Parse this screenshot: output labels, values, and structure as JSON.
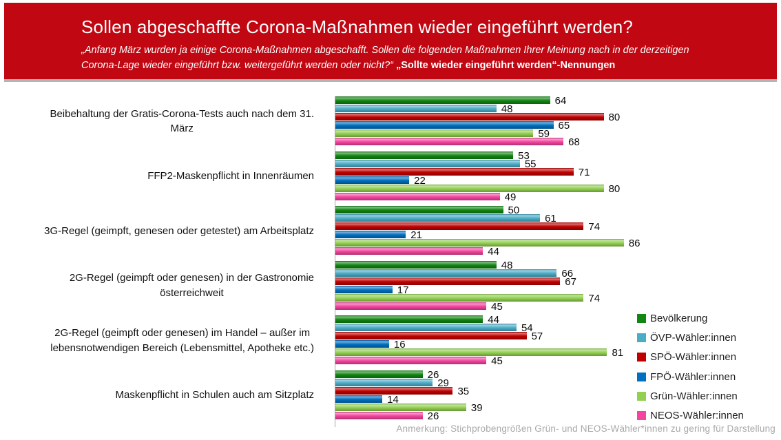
{
  "header": {
    "title": "Sollen abgeschaffte Corona-Maßnahmen wieder eingeführt werden?",
    "subtitle_line1": "„Anfang März wurden ja einige Corona-Maßnahmen abgeschafft. Sollen die folgenden Maßnahmen Ihrer Meinung nach in der derzeitigen",
    "subtitle_line2": "Corona-Lage wieder eingeführt bzw. weitergeführt werden oder nicht?“ ",
    "subtitle_emphasis": "„Sollte wieder eingeführt werden“-Nennungen"
  },
  "chart_data": {
    "type": "bar",
    "orientation": "horizontal",
    "xlim": [
      0,
      100
    ],
    "grid": false,
    "value_labels": true,
    "legend_position": "right-bottom",
    "categories": [
      "Beibehaltung der Gratis-Corona-Tests auch nach dem 31.\nMärz",
      "FFP2-Maskenpflicht in Innenräumen",
      "3G-Regel (geimpft, genesen oder getestet) am Arbeitsplatz",
      "2G-Regel (geimpft oder genesen) in der Gastronomie\nösterreichweit",
      "2G-Regel (geimpft oder genesen) im Handel – außer im\nlebensnotwendigen Bereich (Lebensmittel, Apotheke etc.)",
      "Maskenpflicht in Schulen auch am Sitzplatz"
    ],
    "series": [
      {
        "name": "Bevölkerung",
        "color": "#128612",
        "values": [
          64,
          53,
          50,
          48,
          44,
          26
        ]
      },
      {
        "name": "ÖVP-Wähler:innen",
        "color": "#4BACC6",
        "values": [
          48,
          55,
          61,
          66,
          54,
          29
        ]
      },
      {
        "name": "SPÖ-Wähler:innen",
        "color": "#C00000",
        "values": [
          80,
          71,
          74,
          67,
          57,
          35
        ]
      },
      {
        "name": "FPÖ-Wähler:innen",
        "color": "#0070C0",
        "values": [
          65,
          22,
          21,
          17,
          16,
          14
        ]
      },
      {
        "name": "Grün-Wähler:innen",
        "color": "#92D050",
        "values": [
          59,
          80,
          86,
          74,
          81,
          39
        ]
      },
      {
        "name": "NEOS-Wähler:innen",
        "color": "#F4449F",
        "values": [
          68,
          49,
          44,
          45,
          45,
          26
        ]
      }
    ]
  },
  "footer": {
    "note": "Anmerkung: Stichprobengrößen Grün- und NEOS-Wähler*innen zu gering für Darstellung"
  },
  "colors": {
    "header_bg": "#C00712",
    "header_text": "#ffffff",
    "divider": "#b3b4b6",
    "axis": "#a6a6a6",
    "note_text": "#a9a9a9",
    "value_label": "#0a0a0a"
  }
}
